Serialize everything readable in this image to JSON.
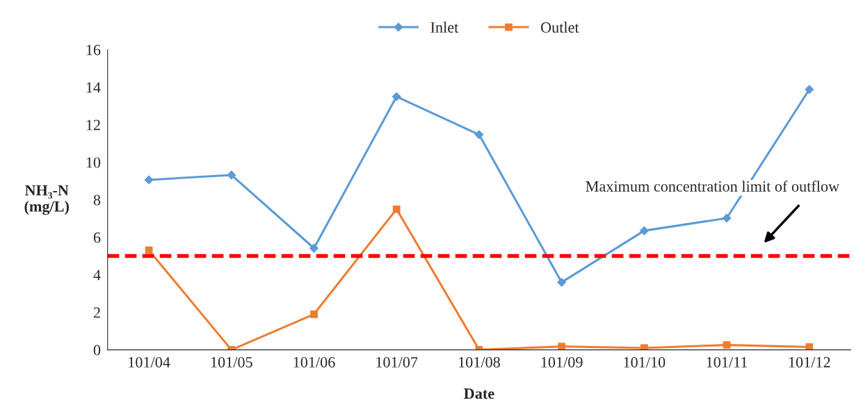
{
  "chart_data": {
    "type": "line",
    "xlabel": "Date",
    "ylabel": "NH₃-N\n(mg/L)",
    "categories": [
      "101/04",
      "101/05",
      "101/06",
      "101/07",
      "101/08",
      "101/09",
      "101/10",
      "101/11",
      "101/12"
    ],
    "series": [
      {
        "name": "Inlet",
        "color": "#5b9bd5",
        "marker": "diamond",
        "values": [
          9.06,
          9.32,
          5.42,
          13.5,
          11.47,
          3.6,
          6.35,
          7.02,
          13.88
        ]
      },
      {
        "name": "Outlet",
        "color": "#ed7d31",
        "marker": "square",
        "values": [
          5.31,
          0,
          1.9,
          7.5,
          0,
          0.18,
          0.1,
          0.26,
          0.15
        ]
      }
    ],
    "ylim": [
      0,
      16
    ],
    "yticks": [
      0,
      2,
      4,
      6,
      8,
      10,
      12,
      14,
      16
    ],
    "ref_lines": [
      {
        "axis": "y",
        "value": 5,
        "color": "#ff0000",
        "line_style": "dashed"
      }
    ],
    "annotations": [
      "Maximum concentration limit of outflow"
    ],
    "legend": "top",
    "grid": false
  }
}
